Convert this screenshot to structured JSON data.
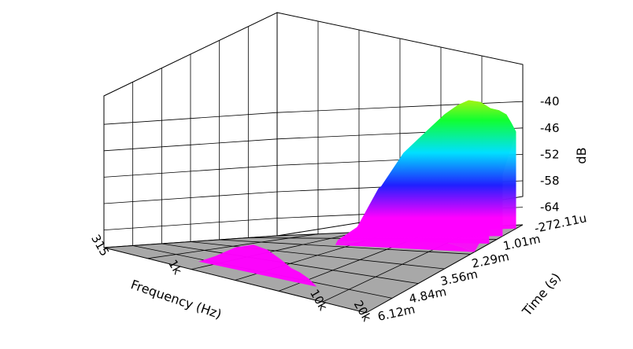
{
  "chart_data": {
    "type": "waterfall-3d",
    "xlabel": "Frequency (Hz)",
    "ylabel": "Time (s)",
    "zlabel": "dB",
    "x_ticks": [
      "315",
      "1k",
      "10k",
      "20k"
    ],
    "x_tick_values": [
      315,
      1000,
      10000,
      20000
    ],
    "time_ticks": [
      "-272.11u",
      "1.01m",
      "2.29m",
      "3.56m",
      "4.84m",
      "6.12m"
    ],
    "z_ticks": [
      "-40",
      "-46",
      "-52",
      "-58",
      "-64"
    ],
    "z_tick_values": [
      -40,
      -46,
      -52,
      -58,
      -64
    ],
    "zlim": [
      -68,
      -37
    ],
    "xlim": [
      315,
      20000
    ],
    "ylim": [
      -0.00027211,
      0.00612
    ],
    "colormap": [
      "#ff00ff",
      "#0000ff",
      "#00ffff",
      "#00ff00",
      "#ffff00",
      "#ff0000"
    ],
    "floor_color": "#a8a8a8",
    "grid": true,
    "slices": [
      {
        "time": 0.0,
        "points": [
          [
            1600,
            -68
          ],
          [
            2000,
            -58
          ],
          [
            3000,
            -50
          ],
          [
            4500,
            -45
          ],
          [
            6000,
            -41.5
          ],
          [
            7500,
            -39.5
          ],
          [
            9000,
            -38.5
          ],
          [
            11000,
            -39
          ],
          [
            13000,
            -40.5
          ],
          [
            15000,
            -41
          ],
          [
            17000,
            -42
          ],
          [
            18500,
            -44
          ],
          [
            20000,
            -46
          ]
        ]
      },
      {
        "time": 0.00055,
        "points": [
          [
            1600,
            -68
          ],
          [
            2500,
            -57
          ],
          [
            4000,
            -52
          ],
          [
            6000,
            -48.5
          ],
          [
            8000,
            -47
          ],
          [
            10000,
            -46.5
          ],
          [
            12000,
            -47.5
          ],
          [
            14000,
            -48.5
          ],
          [
            16000,
            -49.5
          ],
          [
            18000,
            -51
          ],
          [
            20000,
            -54
          ]
        ]
      },
      {
        "time": 0.0011,
        "points": [
          [
            1600,
            -68
          ],
          [
            3000,
            -62
          ],
          [
            5000,
            -59
          ],
          [
            8000,
            -57.5
          ],
          [
            11000,
            -58
          ],
          [
            14000,
            -59.5
          ],
          [
            17000,
            -61.5
          ],
          [
            20000,
            -64
          ]
        ]
      },
      {
        "time": 0.0017,
        "points": [
          [
            2000,
            -68
          ],
          [
            4000,
            -66
          ],
          [
            8000,
            -65.5
          ],
          [
            12000,
            -66
          ],
          [
            16000,
            -67
          ],
          [
            20000,
            -68
          ]
        ]
      },
      {
        "time": 0.0053,
        "points": [
          [
            1000,
            -68
          ],
          [
            1300,
            -66
          ],
          [
            1800,
            -63
          ],
          [
            2400,
            -61.5
          ],
          [
            3000,
            -62
          ],
          [
            3700,
            -63.5
          ],
          [
            4400,
            -65
          ],
          [
            5000,
            -65.5
          ],
          [
            5800,
            -66.5
          ],
          [
            6600,
            -68
          ]
        ]
      }
    ]
  }
}
